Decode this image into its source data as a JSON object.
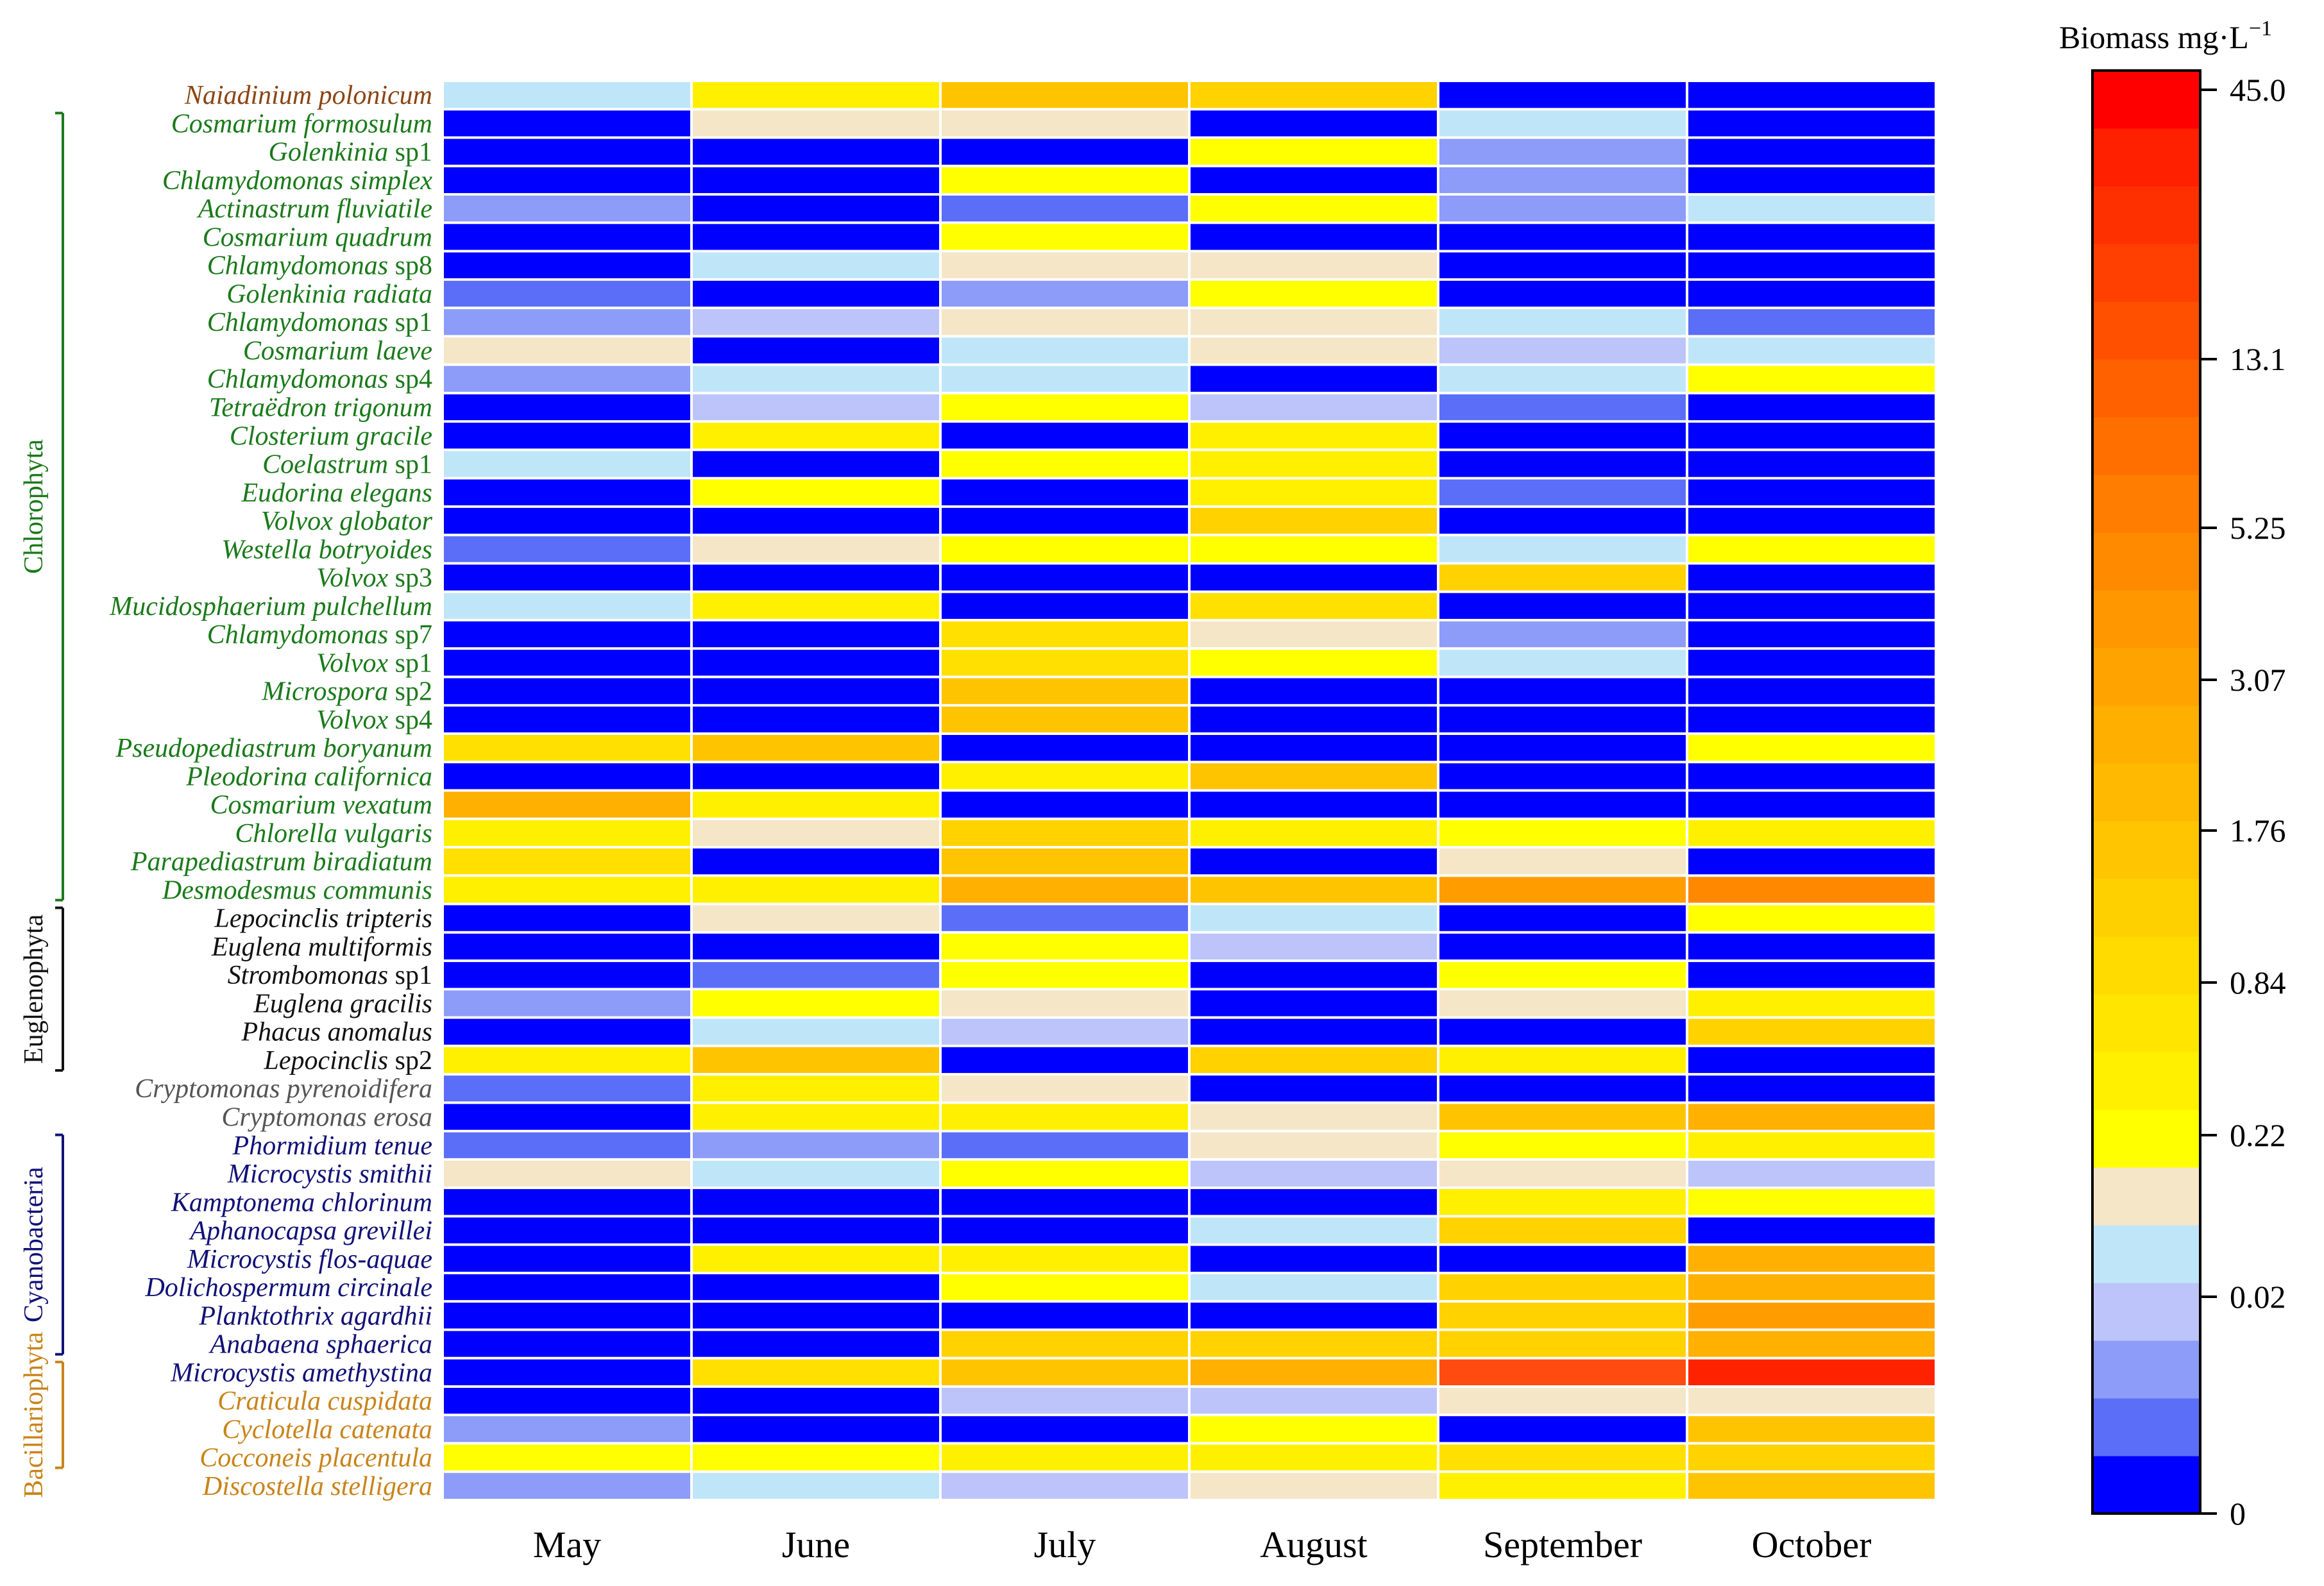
{
  "chart_data": {
    "type": "heatmap",
    "title": "",
    "xlabel": "",
    "ylabel": "",
    "months": [
      "May",
      "June",
      "July",
      "August",
      "September",
      "October"
    ],
    "colorbar": {
      "title": "Biomass mg·L",
      "title_sup": "−1",
      "ticks": [
        "45.0",
        "13.1",
        "5.25",
        "3.07",
        "1.76",
        "0.84",
        "0.22",
        "0.02",
        "0"
      ],
      "colors": [
        "#0000ff",
        "#5b6ef8",
        "#8c9cf8",
        "#bcc4fa",
        "#bfe6f8",
        "#f5e6c8",
        "#ffff00",
        "#fff000",
        "#ffe500",
        "#ffdb00",
        "#ffd000",
        "#ffc500",
        "#ffba00",
        "#ffaf00",
        "#ffa300",
        "#ff9700",
        "#ff8a00",
        "#ff7d00",
        "#ff6f00",
        "#ff6000",
        "#ff5000",
        "#ff4000",
        "#ff3000",
        "#ff2000",
        "#ff0000"
      ]
    },
    "level_colors": {
      "0": "#0000ff",
      "1": "#5b6ef8",
      "2": "#8c9cf8",
      "3": "#bcc4fa",
      "4": "#bfe6f8",
      "5": "#f5e6c8",
      "6": "#ffff00",
      "7": "#fff000",
      "8": "#ffe000",
      "9": "#ffd200",
      "10": "#ffc400",
      "11": "#ffb000",
      "12": "#ff9d00",
      "13": "#ff8800",
      "14": "#ff4a10",
      "15": "#ff2200"
    },
    "groups": [
      {
        "name": "Chlorophyta",
        "color": "#1a7a1a",
        "first": 1,
        "last": 28
      },
      {
        "name": "Euglenophyta",
        "color": "#111111",
        "first": 29,
        "last": 34
      },
      {
        "name": "Cyanobacteria",
        "color": "#111177",
        "first": 37,
        "last": 44
      },
      {
        "name": "Bacillariophyta",
        "color": "#c8841a",
        "first": 45,
        "last": 48
      }
    ],
    "species": [
      {
        "name": "Naiadinium polonicum",
        "suffix": "",
        "color": "#8b4513",
        "values": [
          4,
          7,
          10,
          9,
          0,
          0
        ]
      },
      {
        "name": "Cosmarium formosulum",
        "suffix": "",
        "color": "#1a7a1a",
        "values": [
          0,
          5,
          5,
          0,
          4,
          0
        ]
      },
      {
        "name": "Golenkinia",
        "suffix": " sp1",
        "color": "#1a7a1a",
        "values": [
          0,
          0,
          0,
          6,
          2,
          0
        ]
      },
      {
        "name": "Chlamydomonas simplex",
        "suffix": "",
        "color": "#1a7a1a",
        "values": [
          0,
          0,
          6,
          0,
          2,
          0
        ]
      },
      {
        "name": "Actinastrum fluviatile",
        "suffix": "",
        "color": "#1a7a1a",
        "values": [
          2,
          0,
          1,
          6,
          2,
          4
        ]
      },
      {
        "name": "Cosmarium quadrum",
        "suffix": "",
        "color": "#1a7a1a",
        "values": [
          0,
          0,
          6,
          0,
          0,
          0
        ]
      },
      {
        "name": "Chlamydomonas",
        "suffix": " sp8",
        "color": "#1a7a1a",
        "values": [
          0,
          4,
          5,
          5,
          0,
          0
        ]
      },
      {
        "name": "Golenkinia radiata",
        "suffix": "",
        "color": "#1a7a1a",
        "values": [
          1,
          0,
          2,
          6,
          0,
          0
        ]
      },
      {
        "name": "Chlamydomonas",
        "suffix": " sp1",
        "color": "#1a7a1a",
        "values": [
          2,
          3,
          5,
          5,
          4,
          1
        ]
      },
      {
        "name": "Cosmarium laeve",
        "suffix": "",
        "color": "#1a7a1a",
        "values": [
          5,
          0,
          4,
          5,
          3,
          4
        ]
      },
      {
        "name": "Chlamydomonas",
        "suffix": " sp4",
        "color": "#1a7a1a",
        "values": [
          2,
          4,
          4,
          0,
          4,
          6
        ]
      },
      {
        "name": "Tetraëdron trigonum",
        "suffix": "",
        "color": "#1a7a1a",
        "values": [
          0,
          3,
          6,
          3,
          1,
          0
        ]
      },
      {
        "name": "Closterium gracile",
        "suffix": "",
        "color": "#1a7a1a",
        "values": [
          0,
          7,
          0,
          7,
          0,
          0
        ]
      },
      {
        "name": "Coelastrum",
        "suffix": " sp1",
        "color": "#1a7a1a",
        "values": [
          4,
          0,
          6,
          7,
          0,
          0
        ]
      },
      {
        "name": "Eudorina elegans",
        "suffix": "",
        "color": "#1a7a1a",
        "values": [
          0,
          6,
          0,
          7,
          1,
          0
        ]
      },
      {
        "name": "Volvox globator",
        "suffix": "",
        "color": "#1a7a1a",
        "values": [
          0,
          0,
          0,
          9,
          0,
          0
        ]
      },
      {
        "name": "Westella botryoides",
        "suffix": "",
        "color": "#1a7a1a",
        "values": [
          1,
          5,
          6,
          6,
          4,
          6
        ]
      },
      {
        "name": "Volvox",
        "suffix": " sp3",
        "color": "#1a7a1a",
        "values": [
          0,
          0,
          0,
          0,
          9,
          0
        ]
      },
      {
        "name": "Mucidosphaerium pulchellum",
        "suffix": "",
        "color": "#1a7a1a",
        "values": [
          4,
          7,
          0,
          8,
          0,
          0
        ]
      },
      {
        "name": "Chlamydomonas",
        "suffix": " sp7",
        "color": "#1a7a1a",
        "values": [
          0,
          0,
          8,
          5,
          2,
          0
        ]
      },
      {
        "name": "Volvox",
        "suffix": " sp1",
        "color": "#1a7a1a",
        "values": [
          0,
          0,
          8,
          6,
          4,
          0
        ]
      },
      {
        "name": "Microspora",
        "suffix": " sp2",
        "color": "#1a7a1a",
        "values": [
          0,
          0,
          10,
          0,
          0,
          0
        ]
      },
      {
        "name": "Volvox",
        "suffix": " sp4",
        "color": "#1a7a1a",
        "values": [
          0,
          0,
          10,
          0,
          0,
          0
        ]
      },
      {
        "name": "Pseudopediastrum boryanum",
        "suffix": "",
        "color": "#1a7a1a",
        "values": [
          8,
          10,
          0,
          0,
          0,
          6
        ]
      },
      {
        "name": "Pleodorina californica",
        "suffix": "",
        "color": "#1a7a1a",
        "values": [
          0,
          0,
          7,
          10,
          0,
          0
        ]
      },
      {
        "name": "Cosmarium vexatum",
        "suffix": "",
        "color": "#1a7a1a",
        "values": [
          11,
          7,
          0,
          0,
          0,
          0
        ]
      },
      {
        "name": "Chlorella vulgaris",
        "suffix": "",
        "color": "#1a7a1a",
        "values": [
          7,
          5,
          9,
          7,
          6,
          7
        ]
      },
      {
        "name": "Parapediastrum biradiatum",
        "suffix": "",
        "color": "#1a7a1a",
        "values": [
          8,
          0,
          10,
          0,
          5,
          0
        ]
      },
      {
        "name": "Desmodesmus communis",
        "suffix": "",
        "color": "#1a7a1a",
        "values": [
          7,
          7,
          11,
          10,
          12,
          13
        ]
      },
      {
        "name": "Lepocinclis tripteris",
        "suffix": "",
        "color": "#111111",
        "values": [
          0,
          5,
          1,
          4,
          0,
          6
        ]
      },
      {
        "name": "Euglena multiformis",
        "suffix": "",
        "color": "#111111",
        "values": [
          0,
          0,
          6,
          3,
          0,
          0
        ]
      },
      {
        "name": "Strombomonas",
        "suffix": " sp1",
        "color": "#111111",
        "values": [
          0,
          1,
          6,
          0,
          6,
          0
        ]
      },
      {
        "name": "Euglena gracilis",
        "suffix": "",
        "color": "#111111",
        "values": [
          2,
          6,
          5,
          0,
          5,
          7
        ]
      },
      {
        "name": "Phacus anomalus",
        "suffix": "",
        "color": "#111111",
        "values": [
          0,
          4,
          3,
          0,
          0,
          9
        ]
      },
      {
        "name": "Lepocinclis",
        "suffix": " sp2",
        "color": "#111111",
        "values": [
          7,
          10,
          0,
          9,
          7,
          0
        ]
      },
      {
        "name": "Cryptomonas pyrenoidifera",
        "suffix": "",
        "color": "#555555",
        "values": [
          1,
          7,
          5,
          0,
          0,
          0
        ]
      },
      {
        "name": "Cryptomonas erosa",
        "suffix": "",
        "color": "#555555",
        "values": [
          0,
          7,
          7,
          5,
          10,
          11
        ]
      },
      {
        "name": "Phormidium tenue",
        "suffix": "",
        "color": "#111177",
        "values": [
          1,
          2,
          1,
          5,
          6,
          7
        ]
      },
      {
        "name": "Microcystis smithii",
        "suffix": "",
        "color": "#111177",
        "values": [
          5,
          4,
          6,
          3,
          5,
          3
        ]
      },
      {
        "name": "Kamptonema chlorinum",
        "suffix": "",
        "color": "#111177",
        "values": [
          0,
          0,
          0,
          0,
          7,
          6
        ]
      },
      {
        "name": "Aphanocapsa grevillei",
        "suffix": "",
        "color": "#111177",
        "values": [
          0,
          0,
          0,
          4,
          9,
          0
        ]
      },
      {
        "name": "Microcystis flos-aquae",
        "suffix": "",
        "color": "#111177",
        "values": [
          0,
          7,
          7,
          0,
          0,
          11
        ]
      },
      {
        "name": "Dolichospermum circinale",
        "suffix": "",
        "color": "#111177",
        "values": [
          0,
          0,
          6,
          4,
          9,
          11
        ]
      },
      {
        "name": "Planktothrix agardhii",
        "suffix": "",
        "color": "#111177",
        "values": [
          0,
          0,
          0,
          0,
          9,
          12
        ]
      },
      {
        "name": "Anabaena sphaerica",
        "suffix": "",
        "color": "#111177",
        "values": [
          0,
          0,
          9,
          9,
          9,
          11
        ]
      },
      {
        "name": "Microcystis amethystina",
        "suffix": "",
        "color": "#111177",
        "values": [
          0,
          8,
          10,
          11,
          14,
          15
        ]
      },
      {
        "name": "Craticula cuspidata",
        "suffix": "",
        "color": "#c8841a",
        "values": [
          0,
          0,
          3,
          3,
          5,
          5
        ]
      },
      {
        "name": "Cyclotella catenata",
        "suffix": "",
        "color": "#c8841a",
        "values": [
          2,
          0,
          0,
          6,
          0,
          10
        ]
      },
      {
        "name": "Cocconeis placentula",
        "suffix": "",
        "color": "#c8841a",
        "values": [
          6,
          6,
          7,
          7,
          8,
          9
        ]
      },
      {
        "name": "Discostella stelligera",
        "suffix": "",
        "color": "#c8841a",
        "values": [
          2,
          4,
          3,
          5,
          7,
          10
        ]
      }
    ]
  }
}
